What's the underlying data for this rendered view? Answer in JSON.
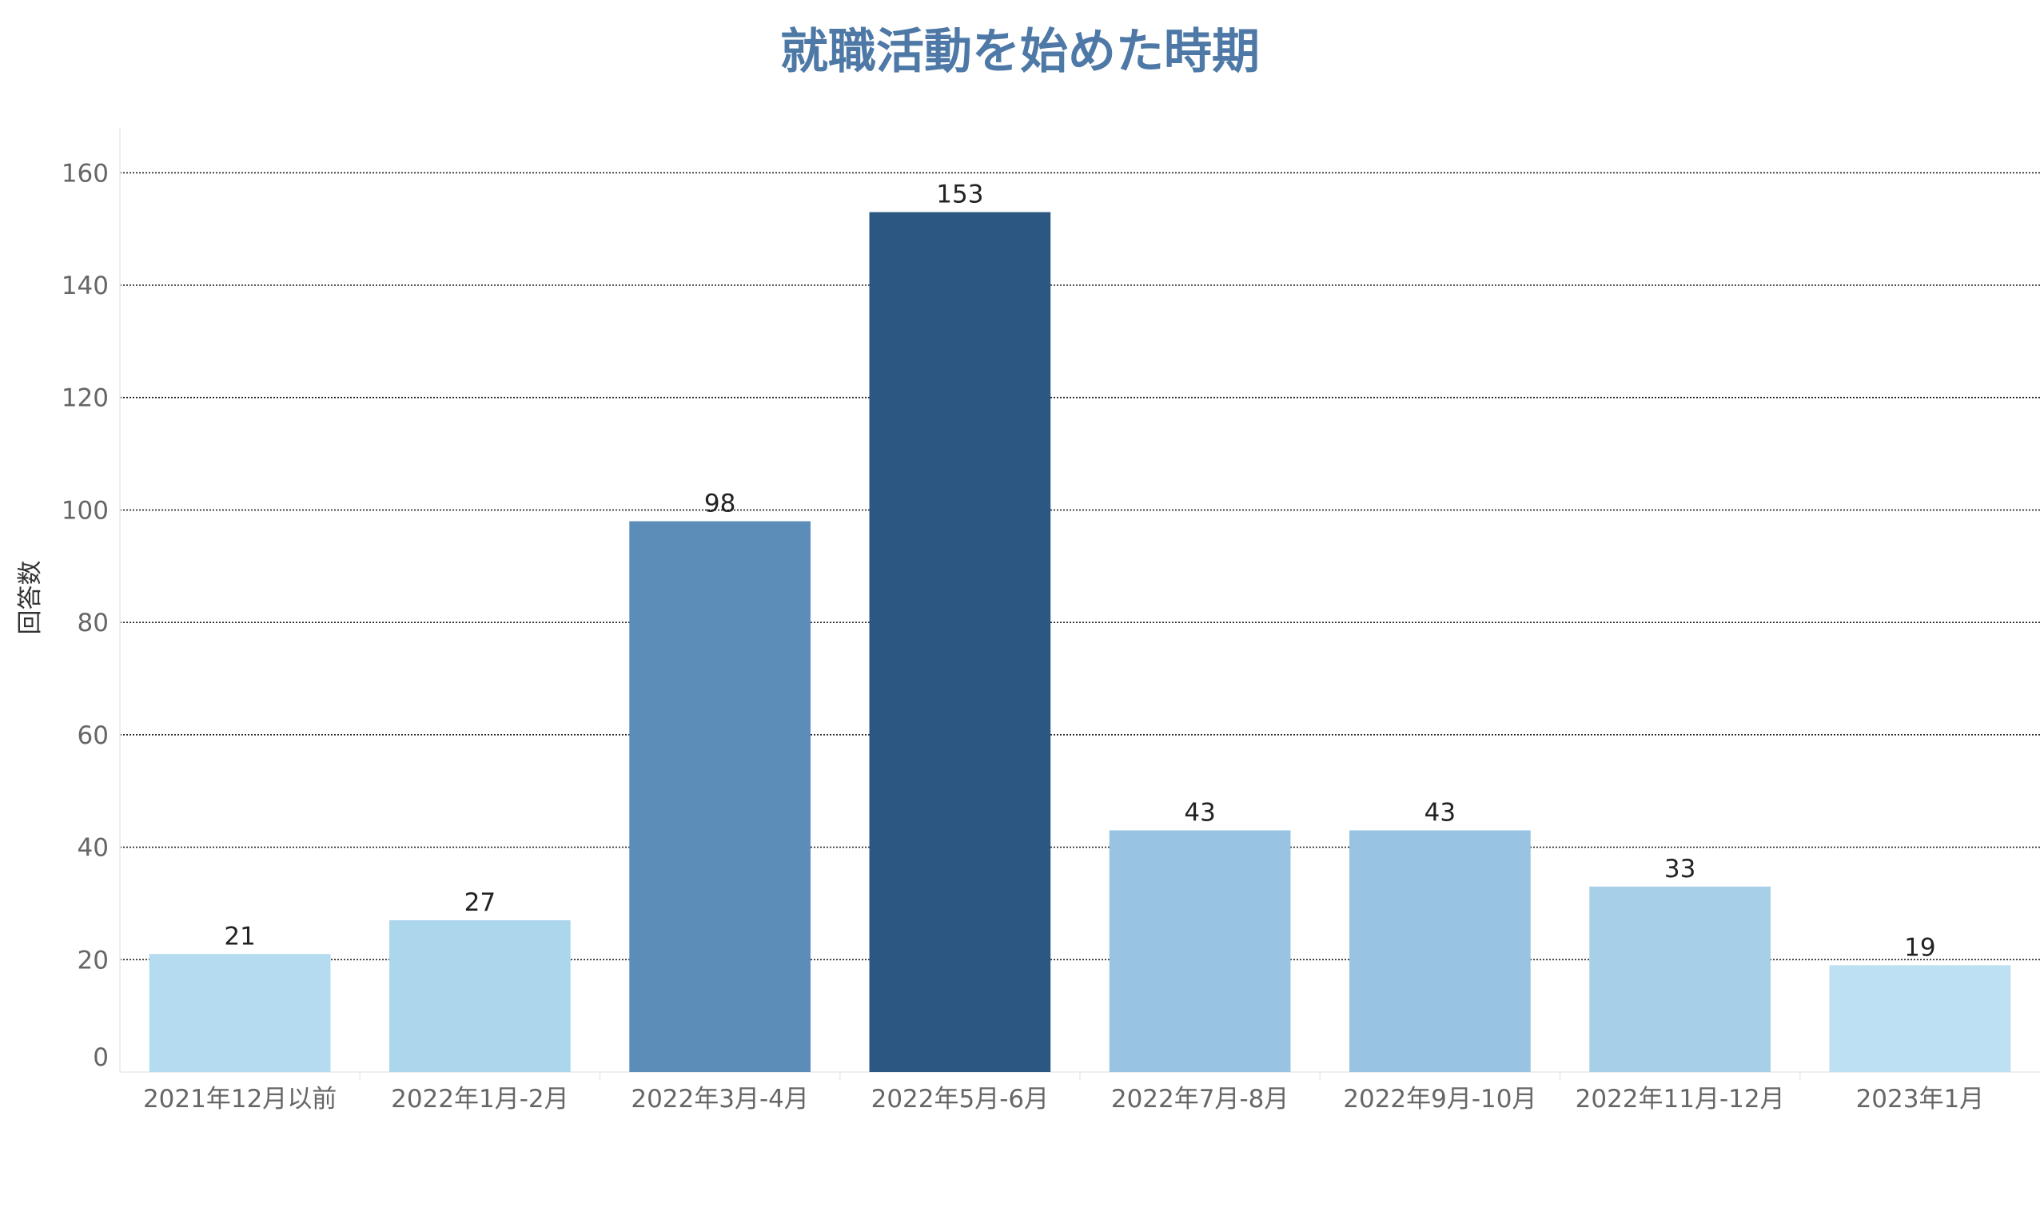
{
  "chart_data": {
    "type": "bar",
    "title": "就職活動を始めた時期",
    "xlabel": "",
    "ylabel": "回答数",
    "categories": [
      "2021年12月以前",
      "2022年1月-2月",
      "2022年3月-4月",
      "2022年5月-6月",
      "2022年7月-8月",
      "2022年9月-10月",
      "2022年11月-12月",
      "2023年1月"
    ],
    "values": [
      21,
      27,
      98,
      153,
      43,
      43,
      33,
      19
    ],
    "bar_colors": [
      "#b4dbef",
      "#acd6ec",
      "#5b8db8",
      "#2c5782",
      "#98c4e2",
      "#98c4e2",
      "#a7cfe8",
      "#bde0f2"
    ],
    "ylim": [
      0,
      168
    ],
    "yticks": [
      0,
      20,
      40,
      60,
      80,
      100,
      120,
      140,
      160
    ],
    "grid": true,
    "grid_style": "dotted horizontal",
    "show_data_labels": true,
    "title_color": "#4e79a7"
  }
}
